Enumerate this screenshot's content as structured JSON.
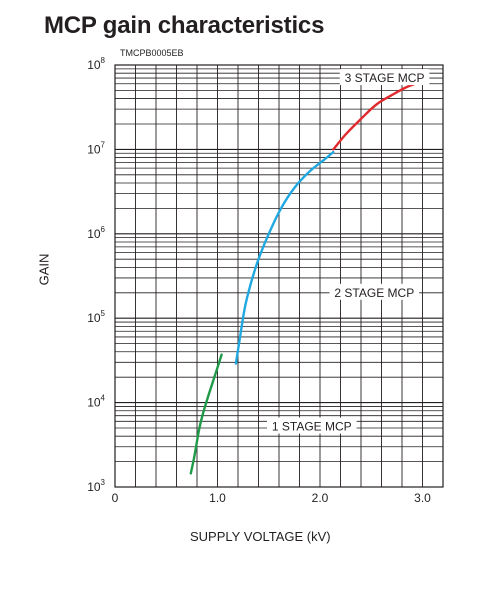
{
  "chart_data": {
    "type": "line",
    "title": "MCP gain characteristics",
    "subtitle": "TMCPB0005EB",
    "xlabel": "SUPPLY VOLTAGE (kV)",
    "ylabel": "GAIN",
    "xlim": [
      0,
      3.2
    ],
    "ylim": [
      1000,
      100000000
    ],
    "yscale": "log",
    "grid": true,
    "x_ticks": [
      {
        "value": 0,
        "label": "0"
      },
      {
        "value": 1.0,
        "label": "1.0"
      },
      {
        "value": 2.0,
        "label": "2.0"
      },
      {
        "value": 3.0,
        "label": "3.0"
      }
    ],
    "y_ticks": [
      {
        "value": 1000,
        "base": "10",
        "exp": "3"
      },
      {
        "value": 10000,
        "base": "10",
        "exp": "4"
      },
      {
        "value": 100000,
        "base": "10",
        "exp": "5"
      },
      {
        "value": 1000000,
        "base": "10",
        "exp": "6"
      },
      {
        "value": 10000000,
        "base": "10",
        "exp": "7"
      },
      {
        "value": 100000000,
        "base": "10",
        "exp": "8"
      }
    ],
    "series": [
      {
        "name": "1 STAGE MCP",
        "color": "#1f9a48",
        "x": [
          0.74,
          0.78,
          0.82,
          0.86,
          0.9,
          0.95,
          1.0,
          1.04
        ],
        "y": [
          1450,
          2500,
          4800,
          7500,
          11000,
          17000,
          26000,
          37000
        ]
      },
      {
        "name": "2 STAGE MCP",
        "color": "#20a8e0",
        "x": [
          1.18,
          1.22,
          1.27,
          1.33,
          1.4,
          1.5,
          1.62,
          1.75,
          1.9,
          2.05,
          2.13
        ],
        "y": [
          29000,
          60000,
          140000,
          270000,
          500000,
          1000000,
          2000000,
          3500000,
          5500000,
          7700000,
          9300000
        ]
      },
      {
        "name": "3 STAGE MCP",
        "color": "#e02a2e",
        "x": [
          2.13,
          2.25,
          2.4,
          2.55,
          2.7,
          2.85,
          3.0,
          3.05
        ],
        "y": [
          10000000,
          15000000,
          23000000,
          34000000,
          44000000,
          55000000,
          64000000,
          68000000
        ]
      }
    ]
  }
}
